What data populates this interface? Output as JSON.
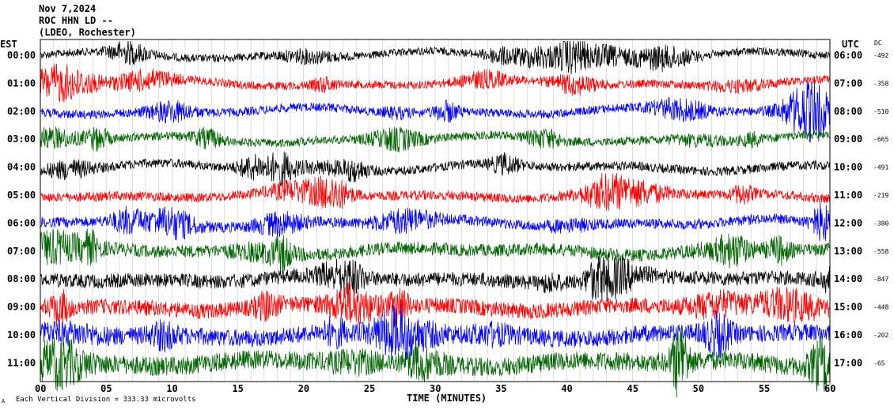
{
  "header": {
    "date": "Nov 7,2024",
    "station": "ROC HHN LD --",
    "network": "(LDEO, Rochester)"
  },
  "labels": {
    "left_zone": "EST",
    "right_zone": "UTC",
    "dc": "DC",
    "xlabel": "TIME (MINUTES)",
    "footer": "Each Vertical Division =  333.33 microvolts",
    "footer_mark": "A"
  },
  "chart_data": {
    "type": "line",
    "title": "Nov 7,2024 ROC HHN LD -- (LDEO, Rochester)",
    "xlabel": "TIME (MINUTES)",
    "xlim": [
      0,
      60
    ],
    "x_ticks": [
      "00",
      "05",
      "10",
      "15",
      "20",
      "25",
      "30",
      "35",
      "40",
      "45",
      "50",
      "55",
      "60"
    ],
    "grid": "vertical lines every minute",
    "trace_colors": [
      "#000000",
      "#ff0000",
      "#0000ff",
      "#006400"
    ],
    "rows": [
      {
        "est": "00:00",
        "utc": "06:00",
        "dc": "-492",
        "color": "#000000",
        "noise": 1.0
      },
      {
        "est": "01:00",
        "utc": "07:00",
        "dc": "-358",
        "color": "#ff0000",
        "noise": 1.05
      },
      {
        "est": "02:00",
        "utc": "08:00",
        "dc": "-510",
        "color": "#0000ff",
        "noise": 1.1
      },
      {
        "est": "03:00",
        "utc": "09:00",
        "dc": "-665",
        "color": "#006400",
        "noise": 1.1
      },
      {
        "est": "04:00",
        "utc": "10:00",
        "dc": "-491",
        "color": "#000000",
        "noise": 1.15
      },
      {
        "est": "05:00",
        "utc": "11:00",
        "dc": "-219",
        "color": "#ff0000",
        "noise": 1.2
      },
      {
        "est": "06:00",
        "utc": "12:00",
        "dc": "-380",
        "color": "#0000ff",
        "noise": 1.3
      },
      {
        "est": "07:00",
        "utc": "13:00",
        "dc": "-558",
        "color": "#006400",
        "noise": 1.6
      },
      {
        "est": "08:00",
        "utc": "14:00",
        "dc": "-847",
        "color": "#000000",
        "noise": 1.8
      },
      {
        "est": "09:00",
        "utc": "15:00",
        "dc": "-448",
        "color": "#ff0000",
        "noise": 2.0
      },
      {
        "est": "10:00",
        "utc": "16:00",
        "dc": "-202",
        "color": "#0000ff",
        "noise": 2.2
      },
      {
        "est": "11:00",
        "utc": "17:00",
        "dc": "-65",
        "color": "#006400",
        "noise": 2.4
      }
    ]
  }
}
